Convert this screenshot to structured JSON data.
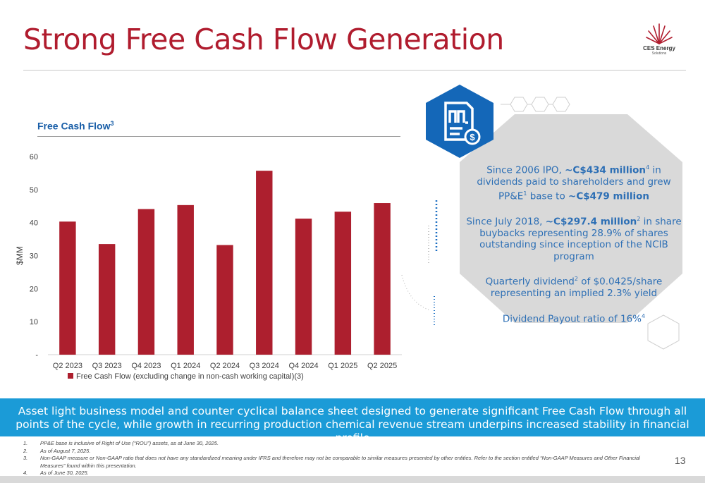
{
  "title": "Strong Free Cash Flow Generation",
  "logo": {
    "name": "CES Energy",
    "sub": "Solutions"
  },
  "chart_heading": {
    "text": "Free Cash Flow",
    "sup": "3"
  },
  "chart_data": {
    "type": "bar",
    "categories": [
      "Q2 2023",
      "Q3 2023",
      "Q4 2023",
      "Q1 2024",
      "Q2 2024",
      "Q3 2024",
      "Q4 2024",
      "Q1 2025",
      "Q2 2025"
    ],
    "series": [
      {
        "name": "Free Cash Flow (excluding change in non-cash working capital)(3)",
        "values": [
          40.3,
          33.5,
          44.1,
          45.3,
          33.2,
          55.7,
          41.2,
          43.3,
          45.9
        ],
        "color": "#ad1f2e"
      }
    ],
    "ylabel": "$MM",
    "ylim": [
      0,
      60
    ],
    "yticks": [
      "-",
      "10",
      "20",
      "30",
      "40",
      "50",
      "60"
    ],
    "legend_position": "bottom"
  },
  "info": {
    "p1": {
      "a": "Since 2006 IPO, ",
      "b": "~C$434 million",
      "sup1": "4",
      "c": " in dividends paid to shareholders and grew PP&E",
      "sup2": "1",
      "d": " base to ",
      "e": "~C$479 million"
    },
    "p2": {
      "a": "Since July 2018, ",
      "b": "~C$297.4 million",
      "sup": "2",
      "c": " in share buybacks representing 28.9% of shares outstanding since inception of the NCIB program"
    },
    "p3": {
      "a": "Quarterly dividend",
      "sup": "2",
      "b": " of $0.0425/share representing an implied 2.3% yield"
    },
    "p4": {
      "a": "Dividend Payout ratio of 16%",
      "sup": "4"
    }
  },
  "banner": "Asset light business model and counter cyclical balance sheet designed to generate significant Free Cash Flow through all points of the cycle, while growth in recurring production chemical revenue stream underpins increased stability in financial profile",
  "footnotes": [
    {
      "num": "1.",
      "text": "PP&E base is inclusive of Right of Use (“ROU”) assets, as at June 30, 2025."
    },
    {
      "num": "2.",
      "text": "As of August 7, 2025."
    },
    {
      "num": "3.",
      "text": "Non-GAAP measure or Non-GAAP ratio that does not have any standardized meaning under IFRS and therefore may not be comparable to similar measures presented by other entities. Refer to the section entitled “Non-GAAP Measures and Other Financial Measures” found within this presentation."
    },
    {
      "num": "4.",
      "text": "As of June 30, 2025."
    }
  ],
  "page_number": "13",
  "colors": {
    "brand_red": "#b01c2e",
    "bar_red": "#ad1f2e",
    "blue": "#1a5fa8",
    "banner_blue": "#1b9bd7",
    "hex_gray": "#d9d9d9"
  },
  "icons": {
    "badge": "document-dollar-icon"
  }
}
